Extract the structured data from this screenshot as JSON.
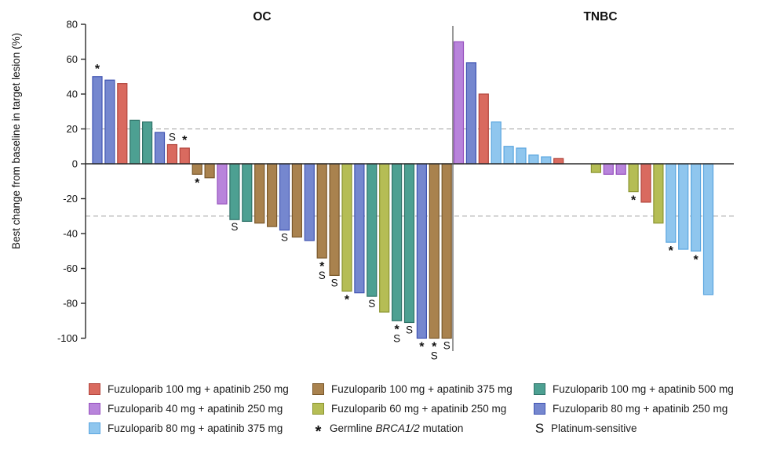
{
  "chart_data": {
    "type": "bar",
    "subtype": "waterfall",
    "title": "",
    "ylabel": "Best change from baseline in target lesion (%)",
    "ylim": [
      -100,
      80
    ],
    "ytick_step": 20,
    "yticks": [
      80,
      60,
      40,
      20,
      0,
      -20,
      -40,
      -60,
      -80,
      -100
    ],
    "reference_lines_pct": [
      20,
      -30
    ],
    "grid": "dashed horizontal reference lines only",
    "legend_position": "bottom",
    "groups": [
      {
        "title": "OC",
        "bars": [
          {
            "value": 50,
            "series": "fz80_ap250",
            "mark": "*"
          },
          {
            "value": 48,
            "series": "fz80_ap250",
            "mark": ""
          },
          {
            "value": 46,
            "series": "fz100_ap250",
            "mark": ""
          },
          {
            "value": 25,
            "series": "fz100_ap500",
            "mark": ""
          },
          {
            "value": 24,
            "series": "fz100_ap500",
            "mark": ""
          },
          {
            "value": 18,
            "series": "fz80_ap250",
            "mark": ""
          },
          {
            "value": 11,
            "series": "fz100_ap250",
            "mark": "S"
          },
          {
            "value": 9,
            "series": "fz100_ap250",
            "mark": "*"
          },
          {
            "value": -6,
            "series": "fz100_ap375",
            "mark": "*"
          },
          {
            "value": -8,
            "series": "fz100_ap375",
            "mark": ""
          },
          {
            "value": -23,
            "series": "fz40_ap250",
            "mark": ""
          },
          {
            "value": -32,
            "series": "fz100_ap500",
            "mark": "S"
          },
          {
            "value": -33,
            "series": "fz100_ap500",
            "mark": ""
          },
          {
            "value": -34,
            "series": "fz100_ap375",
            "mark": ""
          },
          {
            "value": -36,
            "series": "fz100_ap375",
            "mark": ""
          },
          {
            "value": -38,
            "series": "fz80_ap250",
            "mark": "S"
          },
          {
            "value": -42,
            "series": "fz100_ap375",
            "mark": ""
          },
          {
            "value": -44,
            "series": "fz80_ap250",
            "mark": ""
          },
          {
            "value": -54,
            "series": "fz100_ap375",
            "mark": "*S"
          },
          {
            "value": -64,
            "series": "fz100_ap375",
            "mark": "S"
          },
          {
            "value": -73,
            "series": "fz60_ap250",
            "mark": "*"
          },
          {
            "value": -74,
            "series": "fz80_ap250",
            "mark": ""
          },
          {
            "value": -76,
            "series": "fz100_ap500",
            "mark": "S"
          },
          {
            "value": -85,
            "series": "fz60_ap250",
            "mark": ""
          },
          {
            "value": -90,
            "series": "fz100_ap500",
            "mark": "*S"
          },
          {
            "value": -91,
            "series": "fz100_ap500",
            "mark": "S"
          },
          {
            "value": -100,
            "series": "fz80_ap250",
            "mark": "*"
          },
          {
            "value": -100,
            "series": "fz100_ap375",
            "mark": "*S"
          },
          {
            "value": -100,
            "series": "fz100_ap375",
            "mark": "S"
          }
        ]
      },
      {
        "title": "TNBC",
        "bars": [
          {
            "value": 70,
            "series": "fz40_ap250",
            "mark": ""
          },
          {
            "value": 58,
            "series": "fz80_ap250",
            "mark": ""
          },
          {
            "value": 40,
            "series": "fz100_ap250",
            "mark": ""
          },
          {
            "value": 24,
            "series": "fz80_ap375",
            "mark": ""
          },
          {
            "value": 10,
            "series": "fz80_ap375",
            "mark": ""
          },
          {
            "value": 9,
            "series": "fz80_ap375",
            "mark": ""
          },
          {
            "value": 5,
            "series": "fz80_ap375",
            "mark": ""
          },
          {
            "value": 4,
            "series": "fz80_ap375",
            "mark": ""
          },
          {
            "value": 3,
            "series": "fz100_ap250",
            "mark": ""
          },
          {
            "value": 0,
            "series": "",
            "mark": ""
          },
          {
            "value": 0,
            "series": "",
            "mark": ""
          },
          {
            "value": -5,
            "series": "fz60_ap250",
            "mark": ""
          },
          {
            "value": -6,
            "series": "fz40_ap250",
            "mark": ""
          },
          {
            "value": -6,
            "series": "fz40_ap250",
            "mark": ""
          },
          {
            "value": -16,
            "series": "fz60_ap250",
            "mark": "*"
          },
          {
            "value": -22,
            "series": "fz100_ap250",
            "mark": ""
          },
          {
            "value": -34,
            "series": "fz60_ap250",
            "mark": ""
          },
          {
            "value": -45,
            "series": "fz80_ap375",
            "mark": "*"
          },
          {
            "value": -49,
            "series": "fz80_ap375",
            "mark": ""
          },
          {
            "value": -50,
            "series": "fz80_ap375",
            "mark": "*"
          },
          {
            "value": -75,
            "series": "fz80_ap375",
            "mark": ""
          }
        ]
      }
    ],
    "colors": {
      "fz100_ap250": {
        "fill": "#D96A5F",
        "stroke": "#B2453D"
      },
      "fz100_ap375": {
        "fill": "#A9824E",
        "stroke": "#79572A"
      },
      "fz100_ap500": {
        "fill": "#4DA092",
        "stroke": "#2F7268"
      },
      "fz40_ap250": {
        "fill": "#B884DB",
        "stroke": "#9650BE"
      },
      "fz60_ap250": {
        "fill": "#B5BD55",
        "stroke": "#8A9430"
      },
      "fz80_ap250": {
        "fill": "#7587CF",
        "stroke": "#4054B2"
      },
      "fz80_ap375": {
        "fill": "#8FC6EE",
        "stroke": "#59A5DF"
      }
    },
    "annotation_key": {
      "asterisk": "Germline BRCA1/2 mutation",
      "S": "Platinum-sensitive"
    }
  },
  "legend": {
    "columns": [
      [
        {
          "key": "fz100_ap250",
          "label": "Fuzuloparib 100 mg + apatinib 250 mg"
        },
        {
          "key": "fz40_ap250",
          "label": "Fuzuloparib 40 mg + apatinib 250 mg"
        },
        {
          "key": "fz80_ap375",
          "label": "Fuzuloparib 80 mg + apatinib 375 mg"
        }
      ],
      [
        {
          "key": "fz100_ap375",
          "label": "Fuzuloparib 100 mg + apatinib 375 mg"
        },
        {
          "key": "fz60_ap250",
          "label": "Fuzuloparib 60 mg + apatinib 250 mg"
        },
        {
          "symbol": "*",
          "name": "brca-mutation",
          "label": "Germline BRCA1/2 mutation",
          "italic_part": "BRCA1/2"
        }
      ],
      [
        {
          "key": "fz100_ap500",
          "label": "Fuzuloparib 100 mg + apatinib 500 mg"
        },
        {
          "key": "fz80_ap250",
          "label": "Fuzuloparib 80 mg + apatinib 250 mg"
        },
        {
          "symbol": "S",
          "name": "platinum-sensitive",
          "label": "Platinum-sensitive"
        }
      ]
    ]
  }
}
